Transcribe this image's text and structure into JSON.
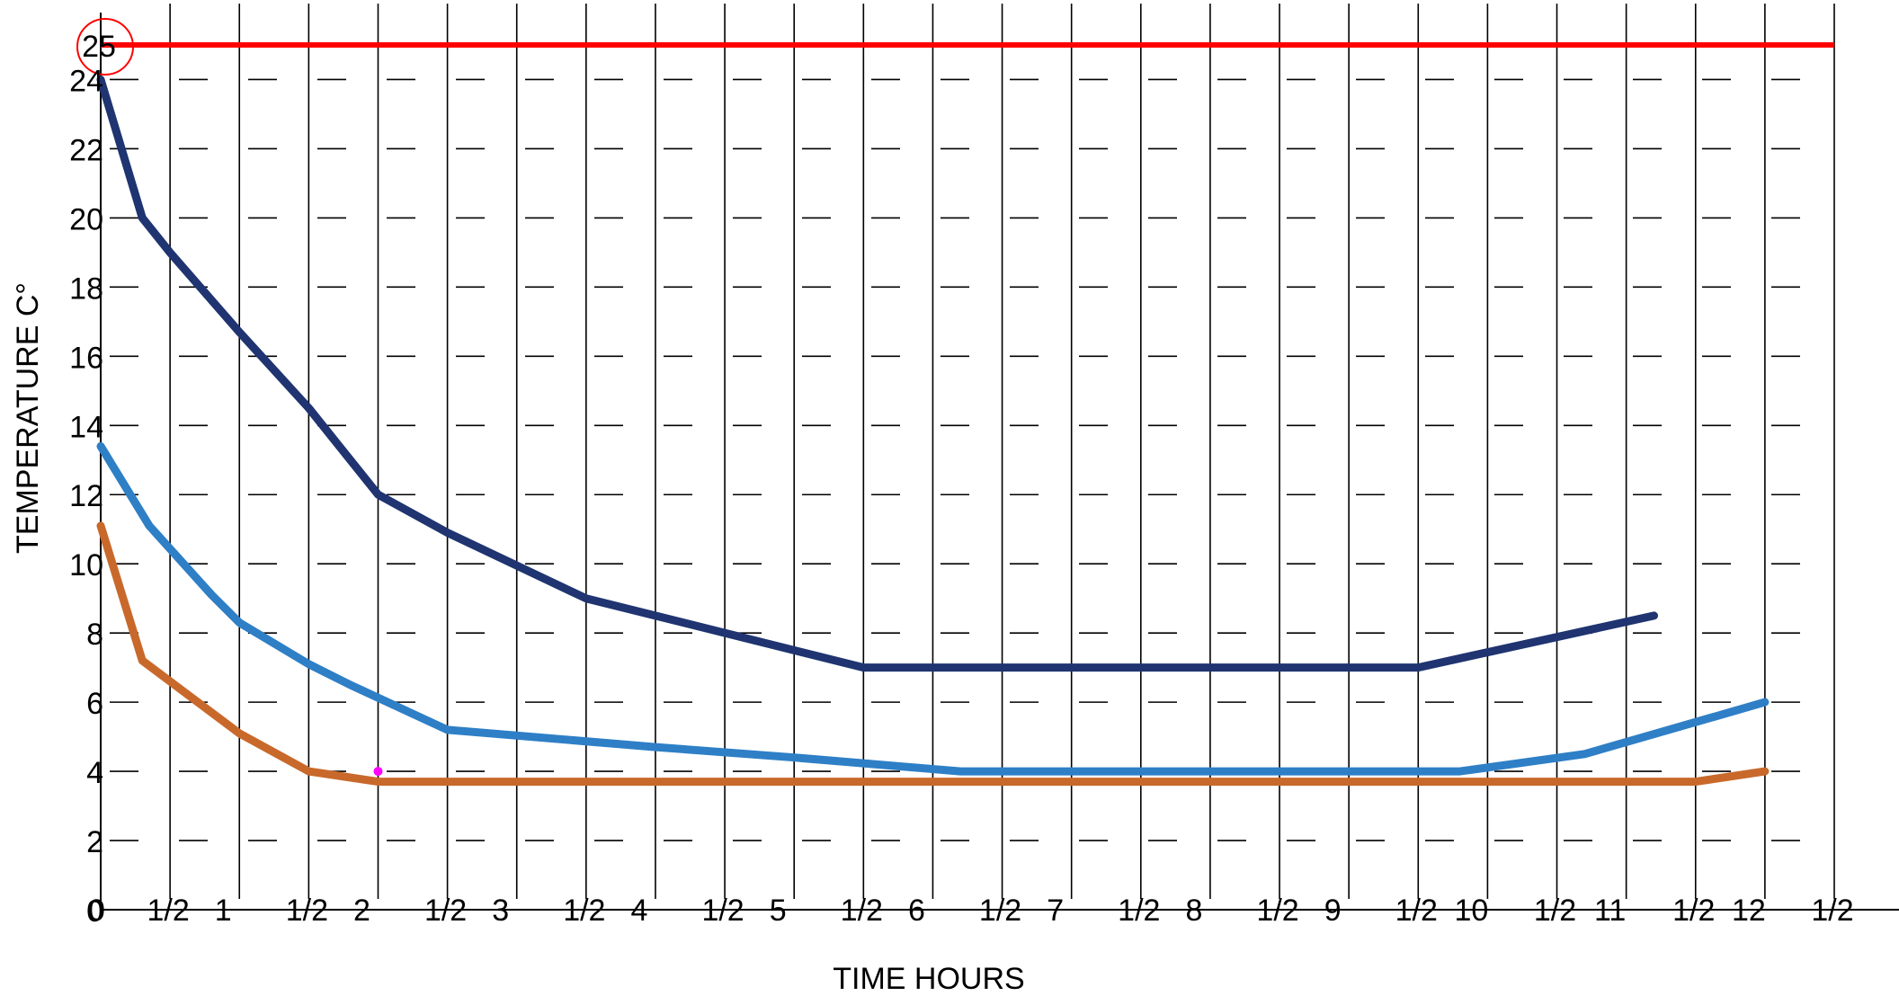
{
  "chart_data": {
    "type": "line",
    "xlabel": "TIME HOURS",
    "ylabel": "TEMPERATURE C°",
    "xlim": [
      0,
      12.5
    ],
    "ylim": [
      0,
      25
    ],
    "grid": true,
    "legend": "none",
    "x_tick_labels": [
      "0",
      "1/2",
      "1",
      "1/2",
      "2",
      "1/2",
      "3",
      "1/2",
      "4",
      "1/2",
      "5",
      "1/2",
      "6",
      "1/2",
      "7",
      "1/2",
      "8",
      "1/2",
      "9",
      "1/2",
      "10",
      "1/2",
      "11",
      "1/2",
      "12",
      "1/2"
    ],
    "y_tick_labels": [
      "0",
      "2",
      "4",
      "6",
      "8",
      "10",
      "12",
      "14",
      "16",
      "18",
      "20",
      "22",
      "24"
    ],
    "reference_line": {
      "y": 25,
      "label": "25",
      "color": "#ff0000"
    },
    "marker_point": {
      "x": 2,
      "y": 4,
      "color": "#ff00ff"
    },
    "series": [
      {
        "color": "#1f3470",
        "x": [
          0,
          0.3,
          0.5,
          1,
          1.5,
          2,
          2.5,
          3.5,
          5.5,
          9.5,
          11.2
        ],
        "y": [
          24,
          20,
          19,
          16.7,
          14.5,
          12,
          10.9,
          9,
          7,
          7,
          8.5
        ]
      },
      {
        "color": "#2e7fc6",
        "x": [
          0,
          0.35,
          0.8,
          1,
          1.5,
          1.8,
          2.5,
          4,
          5,
          6.2,
          9.8,
          10.7,
          12
        ],
        "y": [
          13.4,
          11.1,
          9.1,
          8.3,
          7.1,
          6.5,
          5.2,
          4.7,
          4.4,
          4,
          4,
          4.5,
          6
        ]
      },
      {
        "color": "#c8692b",
        "x": [
          0,
          0.3,
          1,
          1.5,
          2,
          11.5,
          12
        ],
        "y": [
          11.1,
          7.2,
          5.1,
          4,
          3.7,
          3.7,
          4
        ]
      }
    ]
  }
}
